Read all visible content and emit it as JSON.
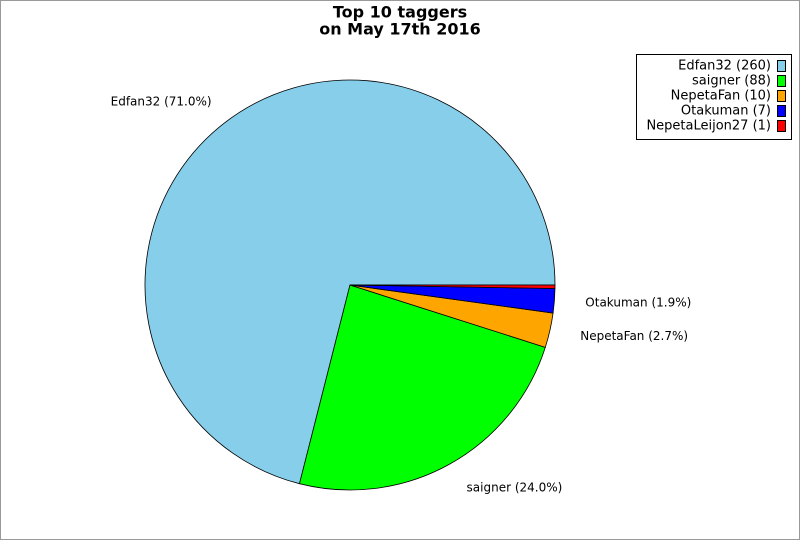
{
  "chart_data": {
    "type": "pie",
    "title": [
      "Top 10 taggers",
      "on May 17th 2016"
    ],
    "categories": [
      "Edfan32",
      "saigner",
      "NepetaFan",
      "Otakuman",
      "NepetaLeijon27"
    ],
    "values": [
      260,
      88,
      10,
      7,
      1
    ],
    "value_labels": [
      "Edfan32 (71.0%)",
      "saigner (24.0%)",
      "NepetaFan (2.7%)",
      "Otakuman (1.9%)",
      null
    ],
    "legend_labels": [
      "Edfan32 (260)",
      "saigner (88)",
      "NepetaFan (10)",
      "Otakuman (7)",
      "NepetaLeijon27 (1)"
    ],
    "colors": [
      "#87ceeb",
      "#00ff00",
      "#ffa500",
      "#0000ff",
      "#ff0000"
    ],
    "legend": "top-right"
  }
}
